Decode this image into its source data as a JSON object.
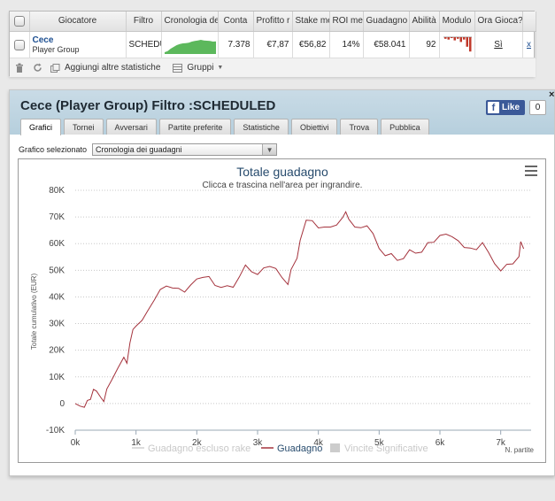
{
  "stats": {
    "headers": [
      "",
      "Giocatore",
      "Filtro",
      "Cronologia de",
      "Conta",
      "Profitto r",
      "Stake me",
      "ROI me",
      "Guadagno",
      "Abilità",
      "Modulo",
      "Ora Gioca?",
      ""
    ],
    "row": {
      "player_name": "Cece",
      "player_group": "Player Group",
      "filter": "SCHEDU",
      "count": "7.378",
      "profit": "€7,87",
      "stake": "€56,82",
      "roi": "14%",
      "winnings": "€58.041",
      "ability": "92",
      "plays_now": "Sì",
      "remove": "x"
    },
    "sparkline_values": [
      0.3,
      0.5,
      0.9,
      1.2,
      1.5,
      1.7,
      1.8,
      1.85,
      1.9,
      2.1,
      2.2,
      2.3,
      2.4,
      2.3,
      2.25,
      2.2,
      2.1,
      2.15
    ],
    "form_bars": [
      0.1,
      0.15,
      0.05,
      0.2,
      0.1,
      0.3,
      0.15,
      0.6,
      0.9
    ],
    "toolbar": {
      "add_stats": "Aggiungi altre statistiche",
      "groups": "Gruppi"
    }
  },
  "panel": {
    "title": "Cece (Player Group) Filtro :SCHEDULED",
    "fb_like": "Like",
    "fb_count": "0",
    "close": "×",
    "tabs": [
      "Grafici",
      "Tornei",
      "Avversari",
      "Partite preferite",
      "Statistiche",
      "Obiettivi",
      "Trova",
      "Pubblica"
    ],
    "selector_label": "Grafico selezionato",
    "selector_value": "Cronologia dei guadagni"
  },
  "chart_data": {
    "type": "line",
    "title": "Totale guadagno",
    "subtitle": "Clicca e trascina nell'area per ingrandire.",
    "xlabel": "N. partite",
    "ylabel": "Totale cumulativo (EUR)",
    "xlim": [
      0,
      7378
    ],
    "ylim": [
      -10000,
      80000
    ],
    "x_ticks": [
      "0k",
      "1k",
      "2k",
      "3k",
      "4k",
      "5k",
      "6k",
      "7k"
    ],
    "y_ticks": [
      "-10K",
      "0",
      "10K",
      "20K",
      "30K",
      "40K",
      "50K",
      "60K",
      "70K",
      "80K"
    ],
    "grid": true,
    "legend_position": "bottom",
    "series": [
      {
        "name": "Guadagno escluso rake",
        "color": "#d0d0d0",
        "visible": false,
        "points": []
      },
      {
        "name": "Guadagno",
        "color": "#a4323c",
        "visible": true,
        "points": [
          [
            0,
            0
          ],
          [
            80,
            -2500
          ],
          [
            150,
            -3000
          ],
          [
            200,
            1000
          ],
          [
            250,
            3000
          ],
          [
            300,
            7000
          ],
          [
            350,
            5000
          ],
          [
            420,
            1000
          ],
          [
            470,
            -1000
          ],
          [
            520,
            5000
          ],
          [
            600,
            10000
          ],
          [
            700,
            15000
          ],
          [
            800,
            18000
          ],
          [
            850,
            14000
          ],
          [
            900,
            21000
          ],
          [
            950,
            27000
          ],
          [
            1000,
            30000
          ],
          [
            1100,
            33000
          ],
          [
            1200,
            36000
          ],
          [
            1300,
            38000
          ],
          [
            1400,
            41000
          ],
          [
            1500,
            43000
          ],
          [
            1600,
            44000
          ],
          [
            1700,
            45000
          ],
          [
            1800,
            43000
          ],
          [
            1900,
            44000
          ],
          [
            2000,
            45000
          ],
          [
            2100,
            46000
          ],
          [
            2200,
            48000
          ],
          [
            2300,
            46000
          ],
          [
            2400,
            45000
          ],
          [
            2500,
            44000
          ],
          [
            2600,
            42000
          ],
          [
            2700,
            46000
          ],
          [
            2800,
            52000
          ],
          [
            2900,
            51000
          ],
          [
            3000,
            50000
          ],
          [
            3100,
            51000
          ],
          [
            3200,
            50000
          ],
          [
            3300,
            49000
          ],
          [
            3400,
            47000
          ],
          [
            3500,
            46000
          ],
          [
            3550,
            52000
          ],
          [
            3650,
            55000
          ],
          [
            3700,
            60000
          ],
          [
            3800,
            67000
          ],
          [
            3900,
            68000
          ],
          [
            4000,
            67000
          ],
          [
            4100,
            68000
          ],
          [
            4200,
            67000
          ],
          [
            4300,
            66000
          ],
          [
            4400,
            68000
          ],
          [
            4450,
            71000
          ],
          [
            4500,
            70000
          ],
          [
            4600,
            68000
          ],
          [
            4700,
            67000
          ],
          [
            4800,
            66000
          ],
          [
            4900,
            62000
          ],
          [
            5000,
            57000
          ],
          [
            5100,
            56000
          ],
          [
            5200,
            58000
          ],
          [
            5300,
            55000
          ],
          [
            5400,
            54000
          ],
          [
            5500,
            56000
          ],
          [
            5600,
            55000
          ],
          [
            5700,
            57000
          ],
          [
            5800,
            62000
          ],
          [
            5900,
            62000
          ],
          [
            6000,
            63000
          ],
          [
            6100,
            62000
          ],
          [
            6200,
            61000
          ],
          [
            6300,
            61000
          ],
          [
            6400,
            60000
          ],
          [
            6500,
            60000
          ],
          [
            6600,
            58000
          ],
          [
            6700,
            59000
          ],
          [
            6800,
            55000
          ],
          [
            6900,
            52000
          ],
          [
            7000,
            51000
          ],
          [
            7100,
            54000
          ],
          [
            7200,
            53000
          ],
          [
            7300,
            54000
          ],
          [
            7330,
            59000
          ],
          [
            7378,
            58041
          ]
        ]
      },
      {
        "name": "Vincite Significative",
        "color": "#cccccc",
        "visible": false,
        "points": []
      }
    ]
  }
}
